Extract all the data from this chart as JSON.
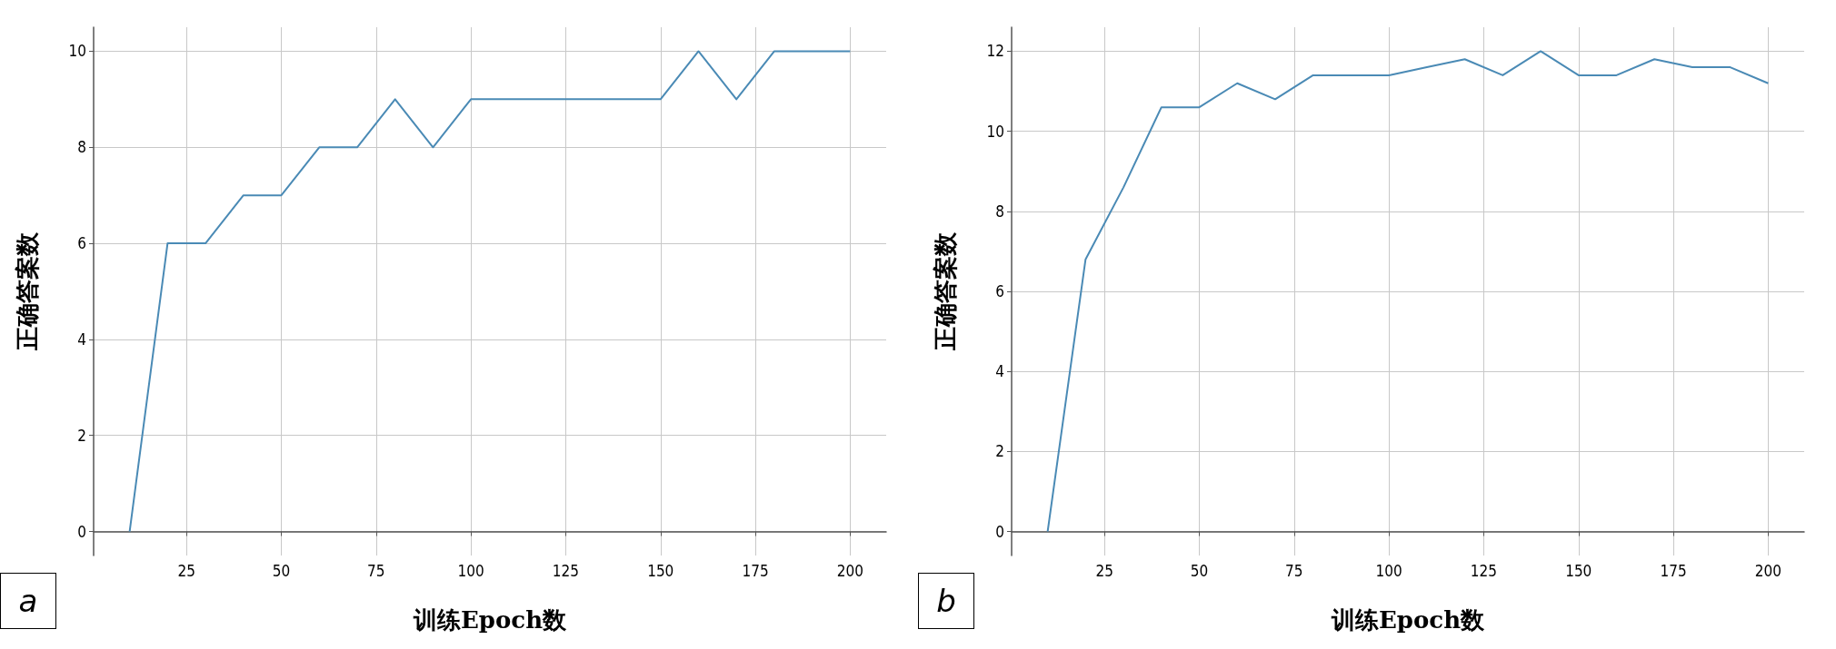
{
  "chart_data": [
    {
      "type": "line",
      "xlabel": "训练Epoch数",
      "ylabel": "正确答案数",
      "annotations": [
        "a"
      ],
      "color": "#4a8ab5",
      "grid": true,
      "x": [
        10,
        20,
        30,
        40,
        50,
        60,
        70,
        80,
        90,
        100,
        110,
        120,
        130,
        140,
        150,
        160,
        170,
        180,
        190,
        200
      ],
      "values": [
        0,
        6,
        6,
        7,
        7,
        8,
        8,
        9,
        8,
        9,
        9,
        9,
        9,
        9,
        9,
        10,
        9,
        10,
        10,
        10
      ],
      "xlim": [
        0.5,
        209.5
      ],
      "xticks": [
        25,
        50,
        75,
        100,
        125,
        150,
        175,
        200
      ],
      "ylim": [
        -0.5,
        10.5
      ],
      "yticks": [
        0,
        2,
        4,
        6,
        8,
        10
      ]
    },
    {
      "type": "line",
      "xlabel": "训练Epoch数",
      "ylabel": "正确答案数",
      "annotations": [
        "b"
      ],
      "color": "#4a8ab5",
      "grid": true,
      "x": [
        10,
        20,
        30,
        40,
        50,
        60,
        70,
        80,
        90,
        100,
        110,
        120,
        130,
        140,
        150,
        160,
        170,
        180,
        190,
        200
      ],
      "values": [
        0,
        6.8,
        8.6,
        10.6,
        10.6,
        11.2,
        10.8,
        11.4,
        11.4,
        11.4,
        11.6,
        11.8,
        11.4,
        12,
        11.4,
        11.4,
        11.8,
        11.6,
        11.6,
        11.2
      ],
      "xlim": [
        0.5,
        209.5
      ],
      "xticks": [
        25,
        50,
        75,
        100,
        125,
        150,
        175,
        200
      ],
      "ylim": [
        -0.6,
        12.6
      ],
      "yticks": [
        0,
        2,
        4,
        6,
        8,
        10,
        12
      ]
    }
  ]
}
